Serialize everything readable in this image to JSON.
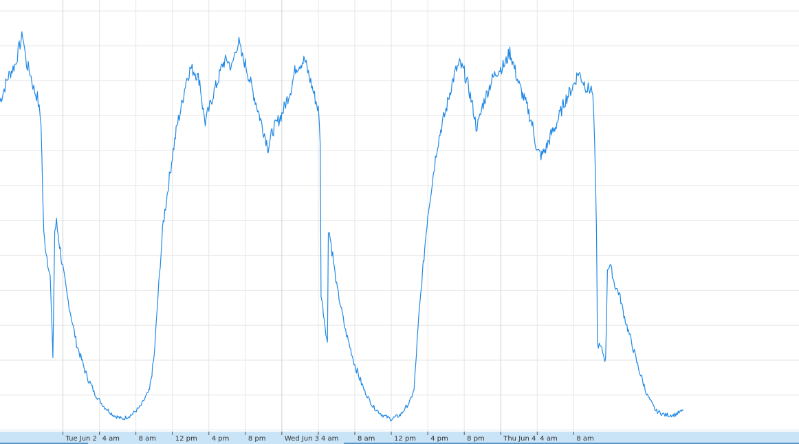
{
  "chart_data": {
    "type": "line",
    "title": "",
    "xlabel": "",
    "ylabel": "",
    "xlim": [
      -6.9,
      80.7
    ],
    "ylim": [
      0,
      100
    ],
    "grid": true,
    "colors": {
      "series": "#1f88e5",
      "grid": "#e6e6e6",
      "nav_band": "#c9e3f7"
    },
    "x_ticks": [
      {
        "x": 0,
        "label": "Tue Jun 2"
      },
      {
        "x": 4,
        "label": "4 am"
      },
      {
        "x": 8,
        "label": "8 am"
      },
      {
        "x": 12,
        "label": "12 pm"
      },
      {
        "x": 16,
        "label": "4 pm"
      },
      {
        "x": 20,
        "label": "8 pm"
      },
      {
        "x": 24,
        "label": "Wed Jun 3"
      },
      {
        "x": 28,
        "label": "4 am"
      },
      {
        "x": 32,
        "label": "8 am"
      },
      {
        "x": 36,
        "label": "12 pm"
      },
      {
        "x": 40,
        "label": "4 pm"
      },
      {
        "x": 44,
        "label": "8 pm"
      },
      {
        "x": 48,
        "label": "Thu Jun 4"
      },
      {
        "x": 52,
        "label": "4 am"
      },
      {
        "x": 56,
        "label": "8 am"
      }
    ],
    "series": [
      {
        "points": [
          [
            -6.9,
            79
          ],
          [
            -6.0,
            85
          ],
          [
            -5.2,
            88
          ],
          [
            -4.8,
            92
          ],
          [
            -4.4,
            95
          ],
          [
            -4.0,
            88
          ],
          [
            -3.6,
            86
          ],
          [
            -3.2,
            82
          ],
          [
            -2.8,
            80
          ],
          [
            -2.4,
            74
          ],
          [
            -2.1,
            47
          ],
          [
            -1.4,
            37
          ],
          [
            -1.1,
            18
          ],
          [
            -0.9,
            48
          ],
          [
            -0.7,
            50
          ],
          [
            -0.2,
            42
          ],
          [
            0.5,
            32
          ],
          [
            1.5,
            21
          ],
          [
            2.5,
            14
          ],
          [
            3.5,
            9
          ],
          [
            4.5,
            6
          ],
          [
            5.5,
            4
          ],
          [
            6.5,
            3
          ],
          [
            7.5,
            4
          ],
          [
            8.5,
            6
          ],
          [
            9.5,
            10
          ],
          [
            10.0,
            18
          ],
          [
            10.5,
            35
          ],
          [
            11.0,
            50
          ],
          [
            11.5,
            58
          ],
          [
            12.0,
            66
          ],
          [
            12.5,
            73
          ],
          [
            13.0,
            78
          ],
          [
            13.5,
            84
          ],
          [
            14.0,
            87
          ],
          [
            14.5,
            86
          ],
          [
            15.0,
            84
          ],
          [
            15.3,
            78
          ],
          [
            15.6,
            74
          ],
          [
            16.0,
            77
          ],
          [
            16.5,
            81
          ],
          [
            17.0,
            84
          ],
          [
            17.5,
            88
          ],
          [
            18.0,
            89
          ],
          [
            18.5,
            87
          ],
          [
            19.0,
            92
          ],
          [
            19.3,
            93
          ],
          [
            19.6,
            90
          ],
          [
            20.0,
            88
          ],
          [
            20.5,
            84
          ],
          [
            21.0,
            80
          ],
          [
            21.5,
            76
          ],
          [
            22.0,
            72
          ],
          [
            22.5,
            68
          ],
          [
            23.0,
            72
          ],
          [
            23.5,
            74
          ],
          [
            24.0,
            76
          ],
          [
            24.5,
            79
          ],
          [
            25.0,
            82
          ],
          [
            25.5,
            87
          ],
          [
            26.0,
            88
          ],
          [
            26.5,
            89
          ],
          [
            27.0,
            85
          ],
          [
            27.5,
            81
          ],
          [
            28.0,
            77
          ],
          [
            28.2,
            70
          ],
          [
            28.3,
            33
          ],
          [
            29.0,
            21
          ],
          [
            29.1,
            49
          ],
          [
            29.4,
            45
          ],
          [
            30.0,
            35
          ],
          [
            31.0,
            24
          ],
          [
            32.0,
            16
          ],
          [
            33.0,
            10
          ],
          [
            34.0,
            6
          ],
          [
            35.0,
            4
          ],
          [
            36.0,
            3
          ],
          [
            37.0,
            4
          ],
          [
            38.0,
            7
          ],
          [
            38.5,
            10
          ],
          [
            39.0,
            27
          ],
          [
            39.5,
            40
          ],
          [
            40.0,
            52
          ],
          [
            40.5,
            60
          ],
          [
            41.0,
            68
          ],
          [
            41.5,
            73
          ],
          [
            42.0,
            77
          ],
          [
            42.5,
            82
          ],
          [
            43.0,
            86
          ],
          [
            43.5,
            88
          ],
          [
            44.0,
            86
          ],
          [
            44.5,
            82
          ],
          [
            45.0,
            77
          ],
          [
            45.3,
            73
          ],
          [
            45.6,
            74
          ],
          [
            46.0,
            78
          ],
          [
            46.5,
            81
          ],
          [
            47.0,
            84
          ],
          [
            47.5,
            86
          ],
          [
            48.0,
            87
          ],
          [
            48.5,
            88
          ],
          [
            49.0,
            91
          ],
          [
            49.5,
            87
          ],
          [
            50.0,
            83
          ],
          [
            50.5,
            80
          ],
          [
            51.0,
            77
          ],
          [
            51.5,
            73
          ],
          [
            52.0,
            67
          ],
          [
            52.5,
            66
          ],
          [
            53.0,
            68
          ],
          [
            53.5,
            71
          ],
          [
            54.0,
            73
          ],
          [
            54.5,
            76
          ],
          [
            55.0,
            79
          ],
          [
            55.5,
            81
          ],
          [
            56.0,
            83
          ],
          [
            56.5,
            86
          ],
          [
            57.0,
            84
          ],
          [
            57.5,
            82
          ],
          [
            58.0,
            82
          ],
          [
            58.2,
            76
          ],
          [
            58.5,
            49
          ],
          [
            58.6,
            21
          ],
          [
            59.0,
            20
          ],
          [
            59.5,
            17
          ],
          [
            59.7,
            39
          ],
          [
            60.0,
            40
          ],
          [
            60.5,
            35
          ],
          [
            61.0,
            33
          ],
          [
            61.5,
            28
          ],
          [
            62.0,
            24
          ],
          [
            63.0,
            16
          ],
          [
            64.0,
            9
          ],
          [
            65.0,
            5
          ],
          [
            66.0,
            4
          ],
          [
            67.0,
            4
          ],
          [
            68.0,
            5
          ]
        ]
      }
    ]
  }
}
